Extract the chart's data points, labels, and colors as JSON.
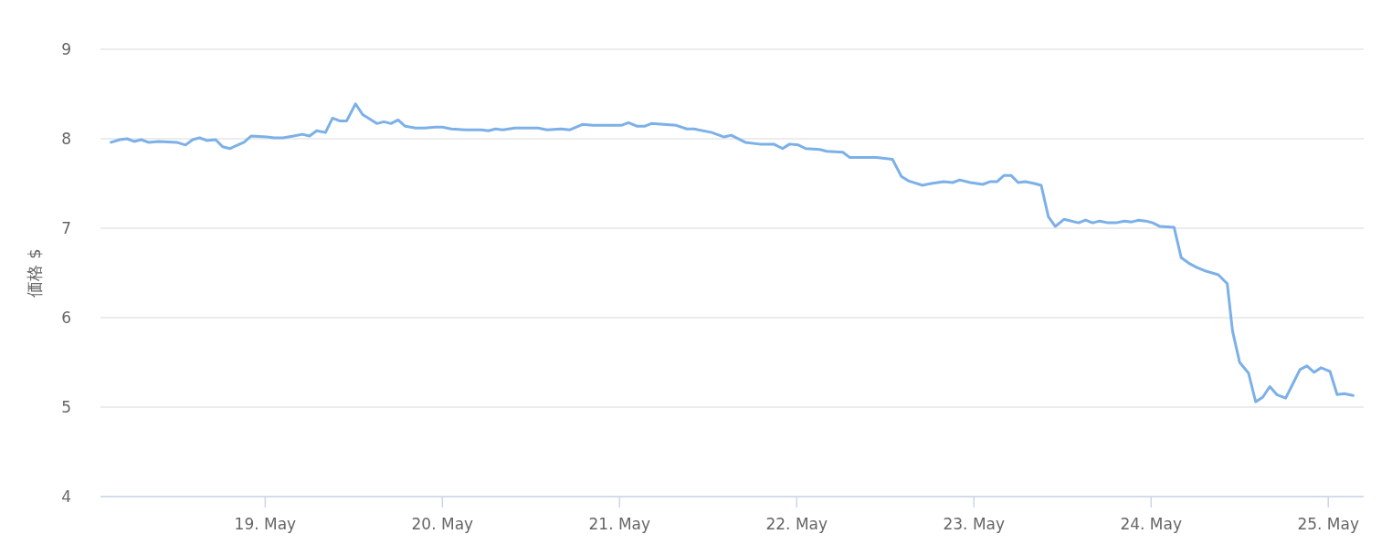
{
  "chart_data": {
    "type": "line",
    "ylabel": "価格 $",
    "xlim": [
      "--05-18T01:41",
      "--05-25T04:48"
    ],
    "ylim": [
      4,
      9
    ],
    "xticks": [
      {
        "value": "--05-19",
        "label": "19. May"
      },
      {
        "value": "--05-20",
        "label": "20. May"
      },
      {
        "value": "--05-21",
        "label": "21. May"
      },
      {
        "value": "--05-22",
        "label": "22. May"
      },
      {
        "value": "--05-23",
        "label": "23. May"
      },
      {
        "value": "--05-24",
        "label": "24. May"
      },
      {
        "value": "--05-25",
        "label": "25. May"
      }
    ],
    "yticks": [
      4,
      5,
      6,
      7,
      8,
      9
    ],
    "grid": "y",
    "series": [
      {
        "color": "#7cb0e8",
        "x": [
          "--05-18T03:07",
          "--05-18T04:19",
          "--05-18T05:17",
          "--05-18T06:14",
          "--05-18T07:12",
          "--05-18T08:10",
          "--05-18T09:36",
          "--05-18T12:00",
          "--05-18T13:12",
          "--05-18T14:10",
          "--05-18T15:07",
          "--05-18T16:05",
          "--05-18T17:17",
          "--05-18T18:14",
          "--05-18T19:12",
          "--05-18T21:07",
          "--05-18T22:05",
          "--05-19T00:14",
          "--05-19T01:12",
          "--05-19T02:24",
          "--05-19T03:50",
          "--05-19T05:02",
          "--05-19T06:00",
          "--05-19T06:58",
          "--05-19T08:10",
          "--05-19T09:07",
          "--05-19T10:05",
          "--05-19T11:02",
          "--05-19T12:14",
          "--05-19T13:12",
          "--05-19T15:07",
          "--05-19T16:05",
          "--05-19T17:02",
          "--05-19T18:00",
          "--05-19T18:58",
          "--05-19T20:24",
          "--05-19T21:36",
          "--05-19T23:02",
          "--05-20T00:00",
          "--05-20T01:12",
          "--05-20T03:07",
          "--05-20T05:17",
          "--05-20T06:14",
          "--05-20T07:12",
          "--05-20T08:10",
          "--05-20T09:50",
          "--05-20T12:58",
          "--05-20T14:10",
          "--05-20T16:05",
          "--05-20T17:17",
          "--05-20T18:58",
          "--05-20T20:24",
          "--05-20T23:02",
          "--05-21T00:14",
          "--05-21T01:12",
          "--05-21T02:24",
          "--05-21T03:22",
          "--05-21T04:19",
          "--05-21T07:41",
          "--05-21T09:07",
          "--05-21T10:05",
          "--05-21T12:29",
          "--05-21T14:10",
          "--05-21T15:07",
          "--05-21T17:02",
          "--05-21T18:58",
          "--05-21T20:53",
          "--05-21T22:05",
          "--05-21T23:02",
          "--05-22T00:14",
          "--05-22T01:12",
          "--05-22T03:07",
          "--05-22T04:05",
          "--05-22T06:14",
          "--05-22T07:12",
          "--05-22T08:53",
          "--05-22T10:48",
          "--05-22T12:58",
          "--05-22T14:10",
          "--05-22T15:07",
          "--05-22T17:02",
          "--05-22T18:14",
          "--05-22T19:55",
          "--05-22T21:07",
          "--05-22T22:05",
          "--05-22T23:31",
          "--05-23T01:12",
          "--05-23T02:10",
          "--05-23T03:07",
          "--05-23T04:05",
          "--05-23T05:02",
          "--05-23T06:00",
          "--05-23T06:58",
          "--05-23T08:10",
          "--05-23T09:07",
          "--05-23T10:05",
          "--05-23T11:02",
          "--05-23T12:14",
          "--05-23T14:10",
          "--05-23T15:07",
          "--05-23T16:05",
          "--05-23T17:02",
          "--05-23T18:14",
          "--05-23T19:12",
          "--05-23T20:24",
          "--05-23T21:22",
          "--05-23T22:19",
          "--05-23T23:17",
          "--05-24T00:14",
          "--05-24T01:12",
          "--05-24T03:07",
          "--05-24T04:05",
          "--05-24T05:17",
          "--05-24T06:14",
          "--05-24T07:26",
          "--05-24T09:07",
          "--05-24T10:19",
          "--05-24T11:02",
          "--05-24T12:00",
          "--05-24T13:12",
          "--05-24T14:10",
          "--05-24T15:07",
          "--05-24T16:05",
          "--05-24T17:02",
          "--05-24T18:14",
          "--05-24T19:12",
          "--05-24T20:10",
          "--05-24T21:07",
          "--05-24T22:05",
          "--05-24T23:02",
          "--05-25T00:14",
          "--05-25T01:12",
          "--05-25T02:10",
          "--05-25T03:22"
        ],
        "values": [
          7.96,
          7.99,
          8.0,
          7.97,
          7.99,
          7.96,
          7.97,
          7.96,
          7.93,
          7.99,
          8.01,
          7.98,
          7.99,
          7.91,
          7.89,
          7.96,
          8.03,
          8.02,
          8.01,
          8.01,
          8.03,
          8.05,
          8.03,
          8.09,
          8.07,
          8.23,
          8.2,
          8.2,
          8.39,
          8.27,
          8.17,
          8.19,
          8.17,
          8.21,
          8.14,
          8.12,
          8.12,
          8.13,
          8.13,
          8.11,
          8.1,
          8.1,
          8.09,
          8.11,
          8.1,
          8.12,
          8.12,
          8.1,
          8.11,
          8.1,
          8.16,
          8.15,
          8.15,
          8.15,
          8.18,
          8.14,
          8.14,
          8.17,
          8.15,
          8.11,
          8.11,
          8.07,
          8.02,
          8.04,
          7.96,
          7.94,
          7.94,
          7.89,
          7.94,
          7.93,
          7.89,
          7.88,
          7.86,
          7.85,
          7.79,
          7.79,
          7.79,
          7.77,
          7.58,
          7.53,
          7.48,
          7.5,
          7.52,
          7.51,
          7.54,
          7.51,
          7.49,
          7.52,
          7.52,
          7.59,
          7.59,
          7.51,
          7.52,
          7.5,
          7.48,
          7.13,
          7.02,
          7.1,
          7.06,
          7.09,
          7.06,
          7.08,
          7.06,
          7.06,
          7.08,
          7.07,
          7.09,
          7.08,
          7.06,
          7.02,
          7.01,
          6.67,
          6.6,
          6.56,
          6.52,
          6.48,
          6.38,
          5.85,
          5.5,
          5.38,
          5.06,
          5.11,
          5.23,
          5.14,
          5.1,
          5.26,
          5.42,
          5.46,
          5.39,
          5.44,
          5.4,
          5.14,
          5.15,
          5.13
        ]
      }
    ]
  }
}
